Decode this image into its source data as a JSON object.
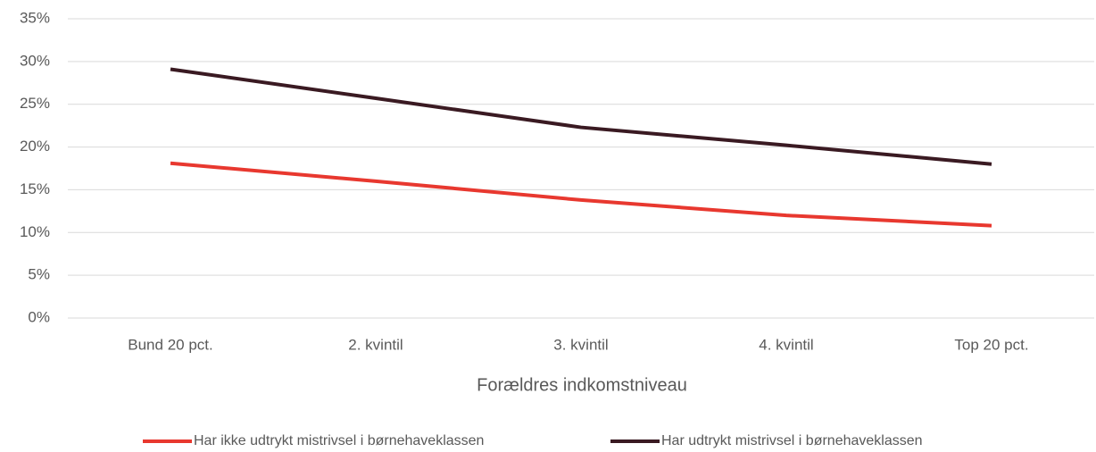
{
  "chart_data": {
    "type": "line",
    "x_label": "Forældres indkomstniveau",
    "categories": [
      "Bund 20 pct.",
      "2. kvintil",
      "3. kvintil",
      "4. kvintil",
      "Top 20 pct."
    ],
    "series": [
      {
        "name": "Har ikke udtrykt mistrivsel i børnehaveklassen",
        "color": "#e8382f",
        "values": [
          18.1,
          16.0,
          13.8,
          12.0,
          10.8
        ]
      },
      {
        "name": "Har udtrykt mistrivsel i børnehaveklassen",
        "color": "#3a1a22",
        "values": [
          29.1,
          25.7,
          22.3,
          20.2,
          18.0
        ]
      }
    ],
    "ylim": [
      0,
      35
    ],
    "yticks": [
      {
        "value": 0,
        "label": "0%"
      },
      {
        "value": 5,
        "label": "5%"
      },
      {
        "value": 10,
        "label": "10%"
      },
      {
        "value": 15,
        "label": "15%"
      },
      {
        "value": 20,
        "label": "20%"
      },
      {
        "value": 25,
        "label": "25%"
      },
      {
        "value": 30,
        "label": "30%"
      },
      {
        "value": 35,
        "label": "35%"
      }
    ],
    "grid": true,
    "legend": "bottom"
  }
}
